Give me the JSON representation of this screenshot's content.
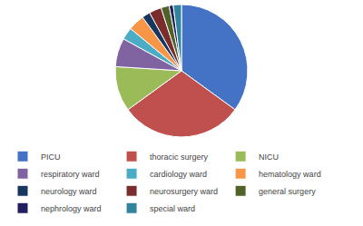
{
  "chart_data": {
    "type": "pie",
    "categories": [
      "PICU",
      "thoracic surgery",
      "NICU",
      "respiratory ward",
      "cardiology ward",
      "hematology ward",
      "neurology ward",
      "neurosurgery ward",
      "general surgery",
      "nephrology ward",
      "special ward"
    ],
    "values": [
      35,
      30,
      11,
      7,
      3,
      4,
      2,
      3,
      2,
      1,
      2
    ],
    "colors": [
      "#4472C4",
      "#C0504D",
      "#9BBB59",
      "#8064A2",
      "#4BACC6",
      "#F79646",
      "#17375E",
      "#7B2C2C",
      "#4F6228",
      "#1F1F5F",
      "#31849B"
    ],
    "legend": "lower left"
  }
}
